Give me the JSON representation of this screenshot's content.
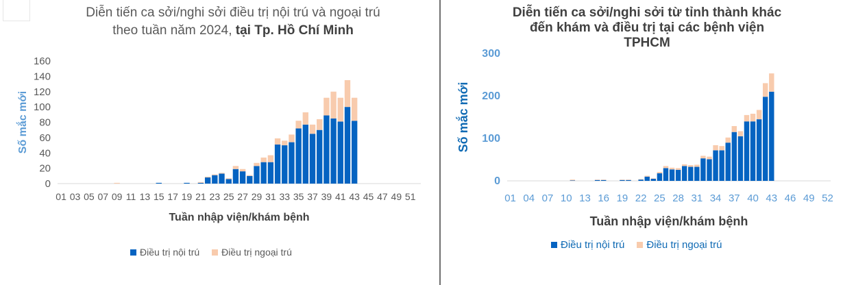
{
  "colors": {
    "inpatient": "#0563c1",
    "outpatient": "#f8cbad",
    "axis_text_left": "#595959",
    "axis_text_right": "#5b9bd5",
    "title_text": "#404040"
  },
  "left": {
    "title_line1": "Diễn tiến ca sởi/nghi sởi điều trị nội trú và ngoại trú",
    "title_line2_prefix": "theo tuần năm 2024, ",
    "title_line2_bold": "tại Tp. Hồ Chí Minh",
    "legend_inpatient": "Điều trị nội trú",
    "legend_outpatient": "Điều trị ngoại trú"
  },
  "right": {
    "title_line1": "Diễn tiến ca sởi/nghi sởi từ tỉnh thành khác",
    "title_line2": "đến khám và điều trị tại các bệnh viện",
    "title_line3": "TPHCM",
    "legend_inpatient": "Điều trị nội trú",
    "legend_outpatient": "Điều trị ngoại trú"
  },
  "chart_data": [
    {
      "type": "bar",
      "stacked": true,
      "xlabel": "Tuần nhập viện/khám bệnh",
      "ylabel": "Số mắc mới",
      "ylim": [
        0,
        160
      ],
      "yticks": [
        0,
        20,
        40,
        60,
        80,
        100,
        120,
        140,
        160
      ],
      "weeks": [
        1,
        2,
        3,
        4,
        5,
        6,
        7,
        8,
        9,
        10,
        11,
        12,
        13,
        14,
        15,
        16,
        17,
        18,
        19,
        20,
        21,
        22,
        23,
        24,
        25,
        26,
        27,
        28,
        29,
        30,
        31,
        32,
        33,
        34,
        35,
        36,
        37,
        38,
        39,
        40,
        41,
        42,
        43,
        44,
        45,
        46,
        47,
        48,
        49,
        50,
        51,
        52
      ],
      "tick_labels": [
        "01",
        "03",
        "05",
        "07",
        "09",
        "11",
        "13",
        "15",
        "17",
        "19",
        "21",
        "23",
        "25",
        "27",
        "29",
        "31",
        "33",
        "35",
        "37",
        "39",
        "41",
        "43",
        "45",
        "47",
        "49",
        "51"
      ],
      "series": [
        {
          "name": "Điều trị nội trú",
          "values": [
            0,
            0,
            0,
            0,
            0,
            0,
            0,
            0,
            0,
            0,
            0,
            0,
            0,
            0,
            1,
            0,
            0,
            0,
            1,
            0,
            1,
            8,
            11,
            13,
            6,
            19,
            16,
            10,
            23,
            28,
            28,
            51,
            50,
            54,
            72,
            77,
            65,
            70,
            89,
            85,
            81,
            100,
            82,
            0,
            0,
            0,
            0,
            0,
            0,
            0,
            0,
            0
          ]
        },
        {
          "name": "Điều trị ngoại trú",
          "values": [
            0,
            0,
            0,
            0,
            0,
            0,
            0,
            0,
            1,
            0,
            0,
            0,
            0,
            0,
            0,
            0,
            0,
            0,
            0,
            0,
            1,
            1,
            1,
            1,
            1,
            4,
            3,
            1,
            4,
            6,
            9,
            8,
            6,
            10,
            10,
            16,
            12,
            14,
            23,
            35,
            31,
            35,
            30,
            0,
            0,
            0,
            0,
            0,
            0,
            0,
            0,
            0
          ]
        }
      ]
    },
    {
      "type": "bar",
      "stacked": true,
      "xlabel": "Tuần nhập viện/khám bệnh",
      "ylabel": "Số mắc mới",
      "ylim": [
        0,
        300
      ],
      "yticks": [
        0,
        100,
        200,
        300
      ],
      "weeks": [
        1,
        2,
        3,
        4,
        5,
        6,
        7,
        8,
        9,
        10,
        11,
        12,
        13,
        14,
        15,
        16,
        17,
        18,
        19,
        20,
        21,
        22,
        23,
        24,
        25,
        26,
        27,
        28,
        29,
        30,
        31,
        32,
        33,
        34,
        35,
        36,
        37,
        38,
        39,
        40,
        41,
        42,
        43,
        44,
        45,
        46,
        47,
        48,
        49,
        50,
        51,
        52
      ],
      "tick_labels": [
        "01",
        "04",
        "07",
        "10",
        "13",
        "16",
        "19",
        "22",
        "25",
        "28",
        "31",
        "34",
        "37",
        "40",
        "43",
        "46",
        "49",
        "52"
      ],
      "series": [
        {
          "name": "Điều trị nội trú",
          "values": [
            0,
            0,
            0,
            0,
            0,
            0,
            0,
            0,
            0,
            0,
            1,
            0,
            0,
            0,
            2,
            2,
            0,
            0,
            2,
            2,
            0,
            3,
            10,
            5,
            18,
            30,
            27,
            26,
            35,
            33,
            33,
            53,
            51,
            72,
            72,
            90,
            115,
            105,
            140,
            140,
            145,
            198,
            210,
            0,
            0,
            0,
            0,
            0,
            0,
            0,
            0,
            0
          ]
        },
        {
          "name": "Điều trị ngoại trú",
          "values": [
            0,
            0,
            0,
            0,
            0,
            0,
            0,
            0,
            0,
            0,
            2,
            0,
            0,
            0,
            1,
            1,
            0,
            0,
            1,
            1,
            0,
            1,
            2,
            1,
            3,
            5,
            4,
            4,
            4,
            4,
            5,
            6,
            6,
            12,
            10,
            12,
            14,
            12,
            15,
            18,
            22,
            32,
            43,
            0,
            0,
            0,
            0,
            0,
            0,
            0,
            0,
            0
          ]
        }
      ]
    }
  ]
}
